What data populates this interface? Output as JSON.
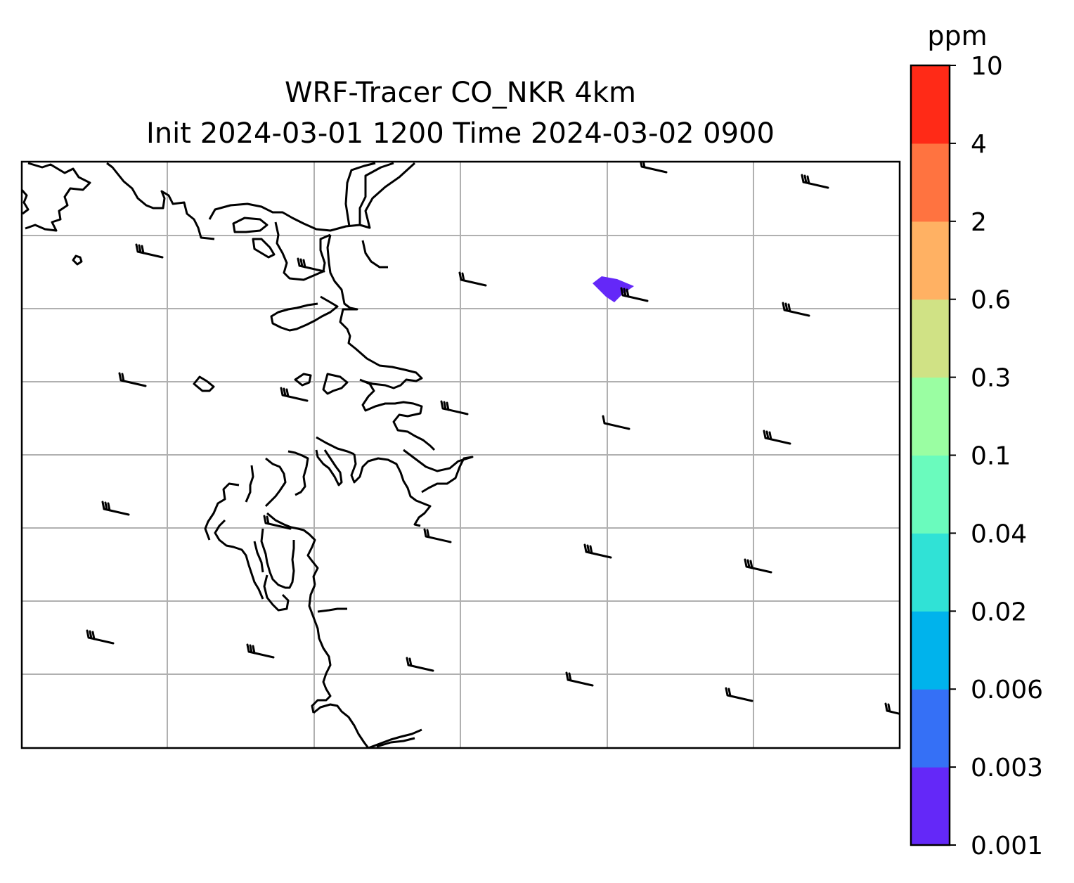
{
  "title_line1": "WRF-Tracer CO_NKR 4km",
  "title_line2": "Init 2024-03-01 1200 Time 2024-03-02 0900",
  "colorbar": {
    "unit": "ppm",
    "levels": [
      "0.001",
      "0.003",
      "0.006",
      "0.02",
      "0.04",
      "0.1",
      "0.3",
      "0.6",
      "2",
      "4",
      "10"
    ],
    "colors": [
      "#6428f8",
      "#3570f6",
      "#00b3ec",
      "#30e2d6",
      "#6afbbd",
      "#9afea2",
      "#d0e285",
      "#ffb163",
      "#ff7340",
      "#ff2a17"
    ]
  },
  "map": {
    "gridlines": true,
    "wind_barbs_direction": "from west-northwest",
    "tracer_plume_level": "0.001-0.003 ppm"
  }
}
